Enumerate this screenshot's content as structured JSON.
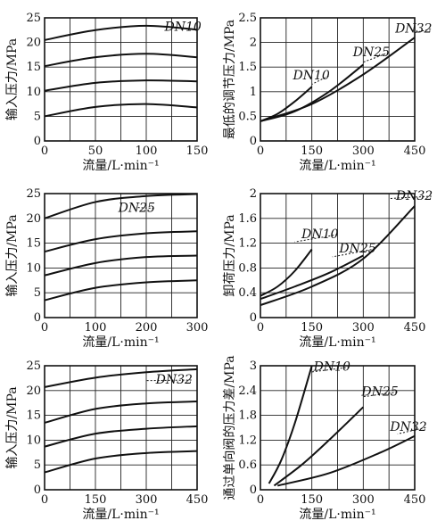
{
  "chart_data": [
    {
      "type": "line",
      "xlabel": "流量/L·min⁻¹",
      "ylabel": "输入压力/MPa",
      "xlim": [
        0,
        150
      ],
      "ylim": [
        0,
        25
      ],
      "xticks": [
        0,
        50,
        100,
        150
      ],
      "yticks": [
        5,
        10,
        15,
        20,
        25
      ],
      "xgrid": [
        0,
        25,
        50,
        75,
        100,
        125,
        150
      ],
      "ygrid": [
        5,
        10,
        15,
        20,
        25
      ],
      "series": [
        {
          "name": "DN10",
          "x": [
            0,
            50,
            100,
            150
          ],
          "y": [
            20.5,
            22.5,
            23.4,
            22.6
          ]
        },
        {
          "name": "",
          "x": [
            0,
            50,
            100,
            150
          ],
          "y": [
            15.2,
            17.0,
            17.7,
            17.0
          ]
        },
        {
          "name": "",
          "x": [
            0,
            50,
            100,
            150
          ],
          "y": [
            10.2,
            11.8,
            12.3,
            12.1
          ]
        },
        {
          "name": "",
          "x": [
            0,
            50,
            100,
            150
          ],
          "y": [
            5.0,
            6.9,
            7.5,
            6.8
          ]
        }
      ],
      "labels": [
        {
          "text": "DN10",
          "x": 118,
          "y": 22.4,
          "lx1": 150,
          "ly1": 22.8
        }
      ]
    },
    {
      "type": "line",
      "xlabel": "流量/L·min⁻¹",
      "ylabel": "最低的调节压力/MPa",
      "xlim": [
        0,
        450
      ],
      "ylim": [
        0,
        2.5
      ],
      "xticks": [
        0,
        150,
        300,
        450
      ],
      "yticks": [
        0.5,
        1.0,
        1.5,
        2.0,
        2.5
      ],
      "xgrid": [
        0,
        75,
        150,
        225,
        300,
        375,
        450
      ],
      "ygrid": [
        0.5,
        1.0,
        1.5,
        2.0,
        2.5
      ],
      "series": [
        {
          "name": "DN10",
          "x": [
            0,
            50,
            100,
            150
          ],
          "y": [
            0.4,
            0.55,
            0.8,
            1.1
          ]
        },
        {
          "name": "DN25",
          "x": [
            0,
            100,
            200,
            300
          ],
          "y": [
            0.4,
            0.6,
            1.0,
            1.55
          ]
        },
        {
          "name": "DN32",
          "x": [
            0,
            150,
            300,
            450
          ],
          "y": [
            0.4,
            0.75,
            1.35,
            2.1
          ]
        }
      ],
      "labels": [
        {
          "text": "DN10",
          "x": 95,
          "y": 1.25,
          "lx1": 150,
          "ly1": 1.15
        },
        {
          "text": "DN25",
          "x": 270,
          "y": 1.72,
          "lx1": 300,
          "ly1": 1.6
        },
        {
          "text": "DN32",
          "x": 393,
          "y": 2.2,
          "lx1": 450,
          "ly1": 2.2
        }
      ]
    },
    {
      "type": "line",
      "xlabel": "流量/L·min⁻¹",
      "ylabel": "输入压力/MPa",
      "xlim": [
        0,
        300
      ],
      "ylim": [
        0,
        25
      ],
      "xticks": [
        0,
        100,
        200,
        300
      ],
      "yticks": [
        5,
        10,
        15,
        20,
        25
      ],
      "xgrid": [
        0,
        50,
        100,
        150,
        200,
        250,
        300
      ],
      "ygrid": [
        5,
        10,
        15,
        20,
        25
      ],
      "series": [
        {
          "name": "DN25",
          "x": [
            0,
            100,
            200,
            300
          ],
          "y": [
            20.0,
            23.3,
            24.5,
            24.9
          ]
        },
        {
          "name": "",
          "x": [
            0,
            100,
            200,
            300
          ],
          "y": [
            13.3,
            15.8,
            17.0,
            17.4
          ]
        },
        {
          "name": "",
          "x": [
            0,
            100,
            200,
            300
          ],
          "y": [
            8.5,
            11.0,
            12.2,
            12.5
          ]
        },
        {
          "name": "",
          "x": [
            0,
            100,
            200,
            300
          ],
          "y": [
            3.5,
            6.0,
            7.1,
            7.5
          ]
        }
      ],
      "labels": [
        {
          "text": "DN25",
          "x": 145,
          "y": 21.3,
          "lx1": 180,
          "ly1": 22.2
        }
      ]
    },
    {
      "type": "line",
      "xlabel": "流量/L·min⁻¹",
      "ylabel": "卸荷压力/MPa",
      "xlim": [
        0,
        450
      ],
      "ylim": [
        0,
        2.0
      ],
      "xticks": [
        0,
        150,
        300,
        450
      ],
      "yticks": [
        0.4,
        0.8,
        1.2,
        1.6,
        2.0
      ],
      "xgrid": [
        0,
        75,
        150,
        225,
        300,
        375,
        450
      ],
      "ygrid": [
        0.4,
        0.8,
        1.2,
        1.6,
        2.0
      ],
      "series": [
        {
          "name": "DN10",
          "x": [
            0,
            50,
            100,
            150
          ],
          "y": [
            0.35,
            0.5,
            0.75,
            1.1
          ]
        },
        {
          "name": "DN25",
          "x": [
            0,
            100,
            200,
            300
          ],
          "y": [
            0.3,
            0.5,
            0.72,
            1.0
          ]
        },
        {
          "name": "DN32",
          "x": [
            0,
            150,
            300,
            450
          ],
          "y": [
            0.2,
            0.5,
            0.95,
            1.8
          ]
        }
      ],
      "labels": [
        {
          "text": "DN10",
          "x": 120,
          "y": 1.28,
          "lx1": 100,
          "ly1": 1.22
        },
        {
          "text": "DN25",
          "x": 230,
          "y": 1.05,
          "lx1": 210,
          "ly1": 0.98
        },
        {
          "text": "DN32",
          "x": 395,
          "y": 1.9,
          "lx1": 375,
          "ly1": 1.92
        }
      ]
    },
    {
      "type": "line",
      "xlabel": "流量/L·min⁻¹",
      "ylabel": "输入压力/MPa",
      "xlim": [
        0,
        450
      ],
      "ylim": [
        0,
        25
      ],
      "xticks": [
        0,
        150,
        300,
        450
      ],
      "yticks": [
        5,
        10,
        15,
        20,
        25
      ],
      "xgrid": [
        0,
        75,
        150,
        225,
        300,
        375,
        450
      ],
      "ygrid": [
        5,
        10,
        15,
        20,
        25
      ],
      "series": [
        {
          "name": "DN32",
          "x": [
            0,
            150,
            300,
            450
          ],
          "y": [
            20.7,
            22.6,
            23.7,
            24.3
          ]
        },
        {
          "name": "",
          "x": [
            0,
            150,
            300,
            450
          ],
          "y": [
            13.5,
            16.3,
            17.4,
            17.8
          ]
        },
        {
          "name": "",
          "x": [
            0,
            150,
            300,
            450
          ],
          "y": [
            8.7,
            11.3,
            12.3,
            12.8
          ]
        },
        {
          "name": "",
          "x": [
            0,
            150,
            300,
            450
          ],
          "y": [
            3.5,
            6.3,
            7.4,
            7.8
          ]
        }
      ],
      "labels": [
        {
          "text": "DN32",
          "x": 328,
          "y": 21.4,
          "lx1": 300,
          "ly1": 22.0
        }
      ]
    },
    {
      "type": "line",
      "xlabel": "流量/L·min⁻¹",
      "ylabel": "通过单向阀的压力差/MPa",
      "xlim": [
        0,
        450
      ],
      "ylim": [
        0,
        3.0
      ],
      "xticks": [
        0,
        150,
        300,
        450
      ],
      "yticks": [
        0.6,
        1.2,
        1.8,
        2.4,
        3.0
      ],
      "xgrid": [
        0,
        75,
        150,
        225,
        300,
        375,
        450
      ],
      "ygrid": [
        0.6,
        1.2,
        1.8,
        2.4,
        3.0
      ],
      "series": [
        {
          "name": "DN10",
          "x": [
            25,
            60,
            100,
            150
          ],
          "y": [
            0.15,
            0.7,
            1.6,
            3.0
          ]
        },
        {
          "name": "DN25",
          "x": [
            40,
            120,
            200,
            300
          ],
          "y": [
            0.1,
            0.6,
            1.2,
            2.0
          ]
        },
        {
          "name": "DN32",
          "x": [
            50,
            200,
            350,
            450
          ],
          "y": [
            0.1,
            0.4,
            0.9,
            1.3
          ]
        }
      ],
      "labels": [
        {
          "text": "DN10",
          "x": 155,
          "y": 2.88,
          "lx1": 150,
          "ly1": 2.85
        },
        {
          "text": "DN25",
          "x": 295,
          "y": 2.28,
          "lx1": 300,
          "ly1": 2.25
        },
        {
          "text": "DN32",
          "x": 378,
          "y": 1.42,
          "lx1": 400,
          "ly1": 1.35
        }
      ]
    }
  ]
}
